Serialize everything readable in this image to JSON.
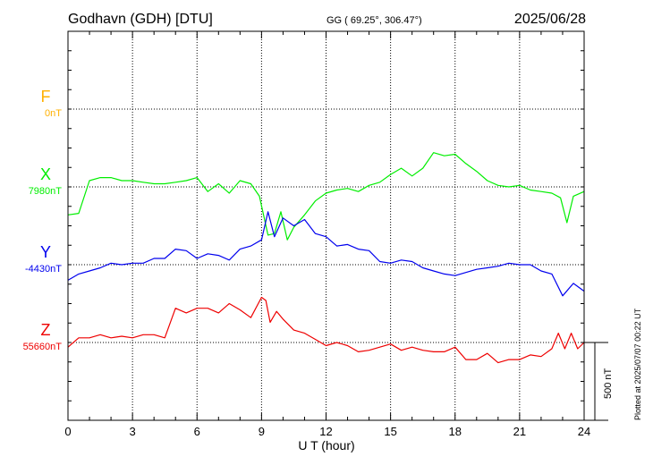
{
  "header": {
    "station": "Godhavn (GDH)  [DTU]",
    "coords": "GG ( 69.25°, 306.47°)",
    "date": "2025/06/28"
  },
  "footer": {
    "plotted": "Plotted at 2025/07/07 00:22 UT"
  },
  "colors": {
    "F": "#ffb000",
    "X": "#00ee00",
    "Y": "#0000ee",
    "Z": "#ee0000",
    "axis": "#000000",
    "grid": "#000000"
  },
  "chart_data": {
    "type": "line",
    "xlabel": "U T (hour)",
    "xlim": [
      0,
      24
    ],
    "x_ticks": [
      "0",
      "3",
      "6",
      "9",
      "12",
      "15",
      "18",
      "21",
      "24"
    ],
    "scale_bar": "500 nT",
    "series": [
      {
        "name": "F",
        "baseline_label": "0nT",
        "x": [],
        "values": []
      },
      {
        "name": "X",
        "baseline_label": "7980nT",
        "x": [
          0,
          0.5,
          1,
          1.5,
          2,
          2.5,
          3,
          3.5,
          4,
          4.5,
          5,
          5.5,
          6,
          6.5,
          7,
          7.5,
          8,
          8.5,
          8.9,
          9.3,
          9.6,
          9.9,
          10.2,
          10.5,
          11,
          11.5,
          12,
          12.5,
          13,
          13.5,
          14,
          14.5,
          15,
          15.5,
          16,
          16.5,
          17,
          17.5,
          18,
          18.5,
          19,
          19.5,
          20,
          20.5,
          21,
          21.5,
          22,
          22.5,
          22.9,
          23.2,
          23.5,
          24
        ],
        "values": [
          -180,
          -170,
          40,
          60,
          60,
          40,
          40,
          30,
          20,
          20,
          30,
          40,
          60,
          -30,
          20,
          -40,
          40,
          20,
          -60,
          -310,
          -300,
          -160,
          -340,
          -260,
          -180,
          -90,
          -40,
          -20,
          -10,
          -30,
          10,
          30,
          80,
          120,
          70,
          120,
          220,
          200,
          210,
          150,
          100,
          40,
          10,
          0,
          10,
          -20,
          -30,
          -40,
          -70,
          -230,
          -60,
          -30
        ]
      },
      {
        "name": "Y",
        "baseline_label": "-4430nT",
        "x": [
          0,
          0.5,
          1,
          1.5,
          2,
          2.5,
          3,
          3.5,
          4,
          4.5,
          5,
          5.5,
          6,
          6.5,
          7,
          7.5,
          8,
          8.5,
          9,
          9.3,
          9.6,
          10,
          10.5,
          11,
          11.5,
          12,
          12.5,
          13,
          13.5,
          14,
          14.5,
          15,
          15.5,
          16,
          16.5,
          17,
          17.5,
          18,
          18.5,
          19,
          19.5,
          20,
          20.5,
          21,
          21.5,
          22,
          22.5,
          23,
          23.5,
          24
        ],
        "values": [
          -100,
          -60,
          -40,
          -20,
          10,
          0,
          10,
          10,
          40,
          40,
          100,
          90,
          40,
          70,
          60,
          30,
          100,
          120,
          160,
          340,
          180,
          300,
          250,
          290,
          200,
          180,
          120,
          130,
          100,
          90,
          20,
          10,
          30,
          20,
          -20,
          -40,
          -60,
          -70,
          -50,
          -30,
          -20,
          -10,
          10,
          0,
          0,
          -40,
          -60,
          -200,
          -120,
          -170
        ]
      },
      {
        "name": "Z",
        "baseline_label": "55660nT",
        "x": [
          0,
          0.5,
          1,
          1.5,
          2,
          2.5,
          3,
          3.5,
          4,
          4.5,
          5,
          5.5,
          6,
          6.5,
          7,
          7.5,
          8,
          8.5,
          9,
          9.2,
          9.4,
          9.7,
          10,
          10.5,
          11,
          11.5,
          12,
          12.5,
          13,
          13.5,
          14,
          14.5,
          15,
          15.5,
          16,
          16.5,
          17,
          17.5,
          18,
          18.5,
          19,
          19.5,
          20,
          20.5,
          21,
          21.5,
          22,
          22.5,
          22.8,
          23.1,
          23.4,
          23.7,
          24
        ],
        "values": [
          -30,
          30,
          30,
          50,
          30,
          40,
          30,
          50,
          50,
          30,
          220,
          190,
          220,
          220,
          190,
          250,
          210,
          160,
          290,
          270,
          130,
          200,
          150,
          80,
          60,
          20,
          -20,
          0,
          -20,
          -60,
          -50,
          -30,
          -10,
          -50,
          -30,
          -50,
          -60,
          -60,
          -30,
          -110,
          -110,
          -70,
          -130,
          -110,
          -110,
          -80,
          -90,
          -40,
          60,
          -40,
          60,
          -40,
          0
        ]
      }
    ]
  }
}
